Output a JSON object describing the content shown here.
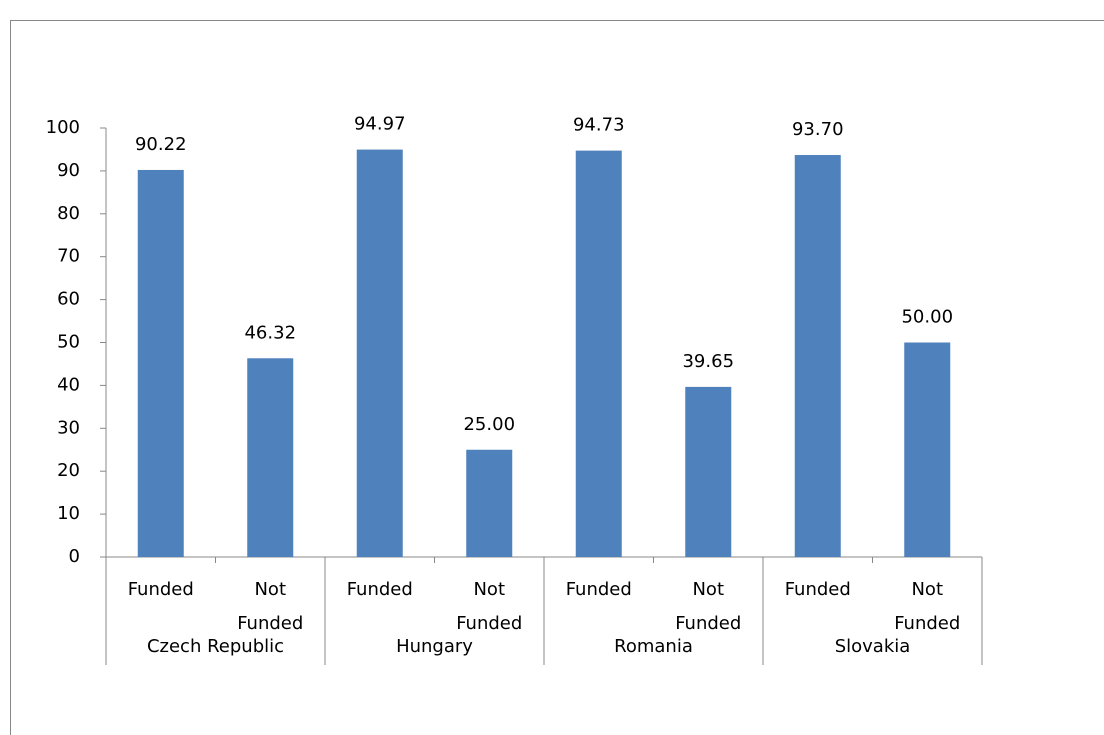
{
  "chart_data": {
    "type": "bar",
    "categories": [
      "Funded",
      "Not Funded",
      "Funded",
      "Not Funded",
      "Funded",
      "Not Funded",
      "Funded",
      "Not Funded"
    ],
    "groups": [
      "Czech Republic",
      "Hungary",
      "Romania",
      "Slovakia"
    ],
    "values": [
      90.22,
      46.32,
      94.97,
      25,
      94.73,
      39.65,
      93.7,
      50
    ],
    "value_labels": [
      "90.22",
      "46.32",
      "94.97",
      "25.00",
      "94.73",
      "39.65",
      "93.70",
      "50.00"
    ],
    "color": "#4f81bd",
    "ylim": [
      0,
      100
    ],
    "yticks": [
      0,
      10,
      20,
      30,
      40,
      50,
      60,
      70,
      80,
      90,
      100
    ]
  }
}
